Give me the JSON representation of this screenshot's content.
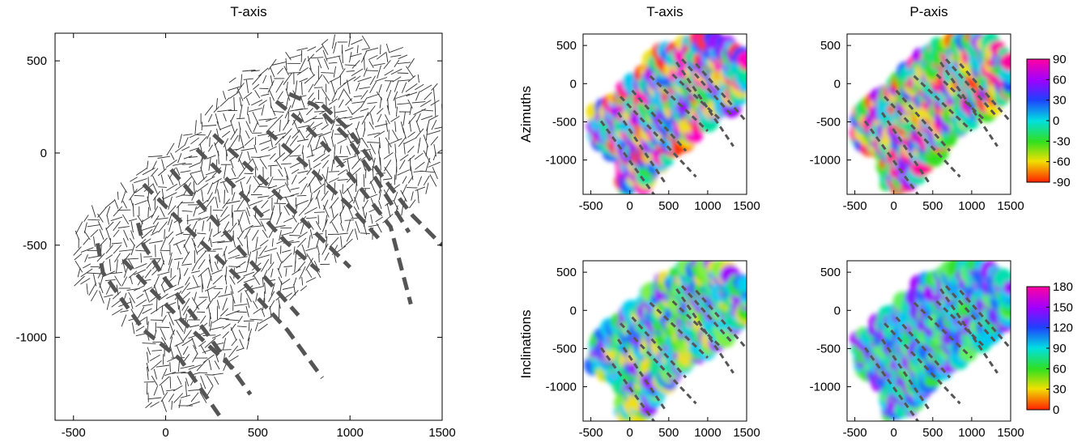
{
  "chart_data": [
    {
      "type": "scatter",
      "panel": "left",
      "title": "T-axis",
      "xlim": [
        -600,
        1500
      ],
      "ylim": [
        -1450,
        650
      ],
      "xticks": [
        -500,
        0,
        500,
        1000,
        1500
      ],
      "yticks": [
        500,
        0,
        -500,
        -1000
      ],
      "grid": false,
      "glyph": "short line segments showing T-axis orientation",
      "fault_traces": [
        {
          "points": [
            [
              -370,
              -490
            ],
            [
              -340,
              -650
            ],
            [
              -120,
              -960
            ],
            [
              80,
              -1120
            ],
            [
              330,
              -1480
            ]
          ]
        },
        {
          "points": [
            [
              -150,
              -380
            ],
            [
              -120,
              -500
            ],
            [
              -5,
              -680
            ],
            [
              210,
              -960
            ],
            [
              460,
              -1310
            ]
          ]
        },
        {
          "points": [
            [
              -230,
              -580
            ],
            [
              -100,
              -720
            ],
            [
              100,
              -920
            ],
            [
              400,
              -1200
            ]
          ]
        },
        {
          "points": [
            [
              -120,
              -170
            ],
            [
              150,
              -440
            ],
            [
              420,
              -700
            ],
            [
              660,
              -960
            ],
            [
              850,
              -1220
            ]
          ]
        },
        {
          "points": [
            [
              30,
              -90
            ],
            [
              260,
              -360
            ],
            [
              490,
              -620
            ],
            [
              720,
              -880
            ]
          ]
        },
        {
          "points": [
            [
              170,
              20
            ],
            [
              420,
              -230
            ],
            [
              650,
              -480
            ],
            [
              830,
              -640
            ]
          ]
        },
        {
          "points": [
            [
              260,
              100
            ],
            [
              520,
              -140
            ],
            [
              780,
              -400
            ],
            [
              1000,
              -620
            ]
          ]
        },
        {
          "points": [
            [
              550,
              120
            ],
            [
              800,
              -100
            ],
            [
              1010,
              -300
            ],
            [
              1170,
              -480
            ]
          ]
        },
        {
          "points": [
            [
              670,
              320
            ],
            [
              810,
              260
            ],
            [
              980,
              90
            ],
            [
              1140,
              -140
            ],
            [
              1320,
              -430
            ]
          ]
        },
        {
          "points": [
            [
              600,
              280
            ],
            [
              750,
              160
            ],
            [
              920,
              -20
            ],
            [
              1080,
              -220
            ],
            [
              1220,
              -400
            ],
            [
              1330,
              -820
            ]
          ]
        },
        {
          "points": [
            [
              850,
              260
            ],
            [
              1000,
              120
            ],
            [
              1170,
              -120
            ],
            [
              1340,
              -340
            ],
            [
              1500,
              -500
            ]
          ]
        }
      ]
    },
    {
      "type": "heatmap",
      "panel": "top-middle",
      "title": "T-axis",
      "ylabel": "Azimuths",
      "xticks": [
        -500,
        0,
        500,
        1000,
        1500
      ],
      "yticks": [
        500,
        0,
        -500,
        -1000
      ],
      "color_range": [
        -90,
        90
      ]
    },
    {
      "type": "heatmap",
      "panel": "top-right",
      "title": "P-axis",
      "xticks": [
        -500,
        0,
        500,
        1000,
        1500
      ],
      "yticks": [
        500,
        0,
        -500,
        -1000
      ],
      "color_range": [
        -90,
        90
      ]
    },
    {
      "type": "heatmap",
      "panel": "bottom-middle",
      "title": "",
      "ylabel": "Inclinations",
      "xticks": [
        -500,
        0,
        500,
        1000,
        1500
      ],
      "yticks": [
        500,
        0,
        -500,
        -1000
      ],
      "color_range": [
        0,
        180
      ]
    },
    {
      "type": "heatmap",
      "panel": "bottom-right",
      "title": "",
      "xticks": [
        -500,
        0,
        500,
        1000,
        1500
      ],
      "yticks": [
        500,
        0,
        -500,
        -1000
      ],
      "color_range": [
        0,
        180
      ]
    }
  ],
  "colorbars": [
    {
      "name": "azimuth-colorbar",
      "ticks": [
        "90",
        "60",
        "30",
        "0",
        "-30",
        "-60",
        "-90"
      ]
    },
    {
      "name": "inclination-colorbar",
      "ticks": [
        "180",
        "150",
        "120",
        "90",
        "60",
        "30",
        "0"
      ]
    }
  ],
  "colors": {
    "segment": "#303030",
    "fault": "#555555",
    "axes": "#000000"
  }
}
